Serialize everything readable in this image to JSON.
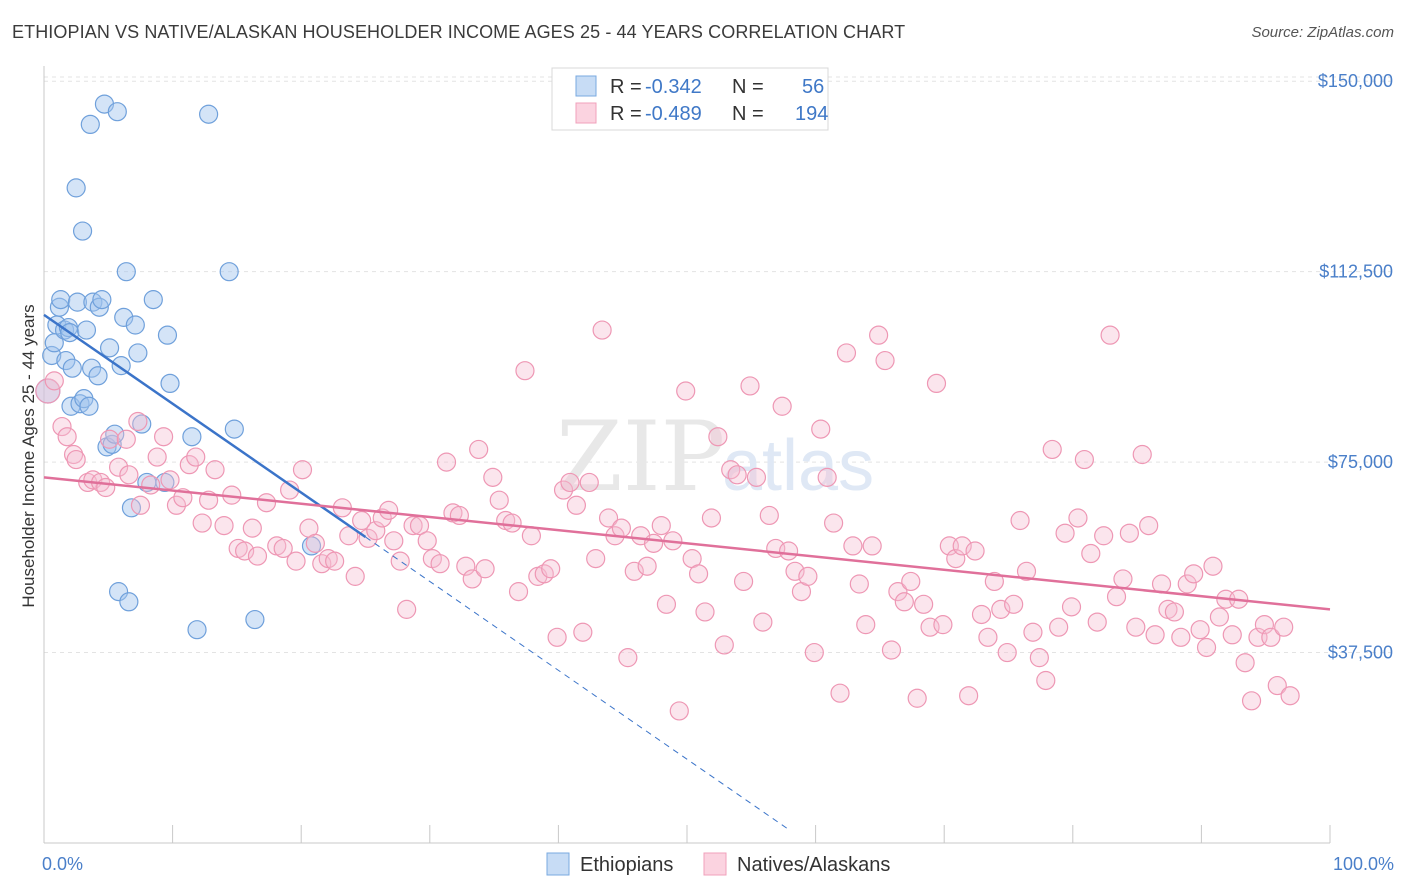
{
  "header": {
    "title": "ETHIOPIAN VS NATIVE/ALASKAN HOUSEHOLDER INCOME AGES 25 - 44 YEARS CORRELATION CHART",
    "source": "Source: ZipAtlas.com"
  },
  "watermark": {
    "zip": "ZIP",
    "atlas": "atlas"
  },
  "legend": {
    "rows": [
      {
        "r_label": "R =",
        "r_value": "-0.342",
        "n_label": "N =",
        "n_value": "56",
        "color": "#7aaae0"
      },
      {
        "r_label": "R =",
        "r_value": "-0.489",
        "n_label": "N =",
        "n_value": "194",
        "color": "#f0a0bb"
      }
    ]
  },
  "chart_data": {
    "type": "scatter",
    "title": "ETHIOPIAN VS NATIVE/ALASKAN HOUSEHOLDER INCOME AGES 25 - 44 YEARS CORRELATION CHART",
    "xlabel": "",
    "ylabel": "Householder Income Ages 25 - 44 years",
    "xlim": [
      0,
      100
    ],
    "ylim": [
      0,
      153000
    ],
    "x_tick_labels": [
      "0.0%",
      "100.0%"
    ],
    "y_ticks": [
      {
        "value": 37500,
        "label": "$37,500"
      },
      {
        "value": 75000,
        "label": "$75,000"
      },
      {
        "value": 112500,
        "label": "$112,500"
      },
      {
        "value": 150000,
        "label": "$150,000"
      }
    ],
    "grid": true,
    "legend_position": "top-center",
    "series": [
      {
        "name": "Ethiopians",
        "color": "#7aaae0",
        "line_color": "#3b74c9",
        "trend": {
          "x_start": 0,
          "y_start": 104000,
          "x_solid_end": 25,
          "x_end": 58,
          "y_at_zero": 104000,
          "slope_per_pct": -1750
        },
        "points": [
          [
            0.3,
            89000
          ],
          [
            0.6,
            96000
          ],
          [
            0.8,
            98500
          ],
          [
            1.0,
            102000
          ],
          [
            1.2,
            105500
          ],
          [
            1.3,
            107000
          ],
          [
            1.6,
            101000
          ],
          [
            1.7,
            95000
          ],
          [
            1.9,
            101500
          ],
          [
            2.0,
            100500
          ],
          [
            2.1,
            86000
          ],
          [
            2.2,
            93500
          ],
          [
            2.5,
            129000
          ],
          [
            2.6,
            106500
          ],
          [
            2.8,
            86500
          ],
          [
            3.0,
            120500
          ],
          [
            3.1,
            87500
          ],
          [
            3.3,
            101000
          ],
          [
            3.5,
            86000
          ],
          [
            3.6,
            141500
          ],
          [
            3.7,
            93500
          ],
          [
            3.8,
            106500
          ],
          [
            4.2,
            92000
          ],
          [
            4.3,
            105500
          ],
          [
            4.5,
            107000
          ],
          [
            4.7,
            145500
          ],
          [
            4.9,
            78000
          ],
          [
            5.1,
            97500
          ],
          [
            5.3,
            78500
          ],
          [
            5.5,
            80500
          ],
          [
            5.7,
            144000
          ],
          [
            5.8,
            49500
          ],
          [
            6.0,
            94000
          ],
          [
            6.2,
            103500
          ],
          [
            6.4,
            112500
          ],
          [
            6.6,
            47500
          ],
          [
            6.8,
            66000
          ],
          [
            7.1,
            102000
          ],
          [
            7.3,
            96500
          ],
          [
            7.6,
            82500
          ],
          [
            8.0,
            71000
          ],
          [
            8.5,
            107000
          ],
          [
            9.4,
            71000
          ],
          [
            9.6,
            100000
          ],
          [
            9.8,
            90500
          ],
          [
            11.5,
            80000
          ],
          [
            11.9,
            42000
          ],
          [
            12.8,
            143500
          ],
          [
            14.4,
            112500
          ],
          [
            14.8,
            81500
          ],
          [
            16.4,
            44000
          ],
          [
            20.8,
            58500
          ]
        ]
      },
      {
        "name": "Natives/Alaskans",
        "color": "#f0a0bb",
        "line_color": "#e0709a",
        "trend": {
          "x_start": 0,
          "y_start": 72000,
          "x_end": 100,
          "y_end": 46000
        },
        "points": [
          [
            0.3,
            89000
          ],
          [
            0.8,
            91000
          ],
          [
            1.4,
            82000
          ],
          [
            1.8,
            80000
          ],
          [
            2.3,
            76500
          ],
          [
            2.5,
            75500
          ],
          [
            3.4,
            71000
          ],
          [
            3.8,
            71500
          ],
          [
            4.4,
            71000
          ],
          [
            4.8,
            70000
          ],
          [
            5.1,
            79500
          ],
          [
            5.8,
            74000
          ],
          [
            6.4,
            79500
          ],
          [
            6.6,
            72500
          ],
          [
            7.3,
            83000
          ],
          [
            7.5,
            66500
          ],
          [
            8.3,
            70500
          ],
          [
            8.8,
            76000
          ],
          [
            9.3,
            80000
          ],
          [
            9.8,
            71500
          ],
          [
            10.3,
            66500
          ],
          [
            10.8,
            68000
          ],
          [
            11.3,
            74500
          ],
          [
            11.8,
            76000
          ],
          [
            12.3,
            63000
          ],
          [
            12.8,
            67500
          ],
          [
            13.3,
            73500
          ],
          [
            14.0,
            62500
          ],
          [
            14.6,
            68500
          ],
          [
            15.1,
            58000
          ],
          [
            15.6,
            57500
          ],
          [
            16.2,
            62000
          ],
          [
            16.6,
            56500
          ],
          [
            17.3,
            67000
          ],
          [
            18.1,
            58500
          ],
          [
            18.6,
            58000
          ],
          [
            19.1,
            69500
          ],
          [
            19.6,
            55500
          ],
          [
            20.1,
            73500
          ],
          [
            20.6,
            62000
          ],
          [
            21.1,
            59000
          ],
          [
            21.6,
            55000
          ],
          [
            22.1,
            56000
          ],
          [
            22.6,
            55500
          ],
          [
            23.2,
            66000
          ],
          [
            23.7,
            60500
          ],
          [
            24.2,
            52500
          ],
          [
            24.7,
            63500
          ],
          [
            25.2,
            60000
          ],
          [
            25.8,
            61500
          ],
          [
            26.3,
            64000
          ],
          [
            26.8,
            65500
          ],
          [
            27.2,
            59500
          ],
          [
            27.7,
            55500
          ],
          [
            28.2,
            46000
          ],
          [
            28.7,
            62500
          ],
          [
            29.2,
            62500
          ],
          [
            29.8,
            59500
          ],
          [
            30.2,
            56000
          ],
          [
            30.8,
            55000
          ],
          [
            31.3,
            75000
          ],
          [
            31.8,
            65000
          ],
          [
            32.3,
            64500
          ],
          [
            32.8,
            54500
          ],
          [
            33.3,
            52000
          ],
          [
            33.8,
            77500
          ],
          [
            34.3,
            54000
          ],
          [
            34.9,
            72000
          ],
          [
            35.4,
            67500
          ],
          [
            35.9,
            63500
          ],
          [
            36.4,
            63000
          ],
          [
            36.9,
            49500
          ],
          [
            37.4,
            93000
          ],
          [
            37.9,
            60500
          ],
          [
            38.4,
            52500
          ],
          [
            38.9,
            53000
          ],
          [
            39.4,
            54000
          ],
          [
            39.9,
            40500
          ],
          [
            40.4,
            69500
          ],
          [
            40.9,
            71000
          ],
          [
            41.4,
            66500
          ],
          [
            41.9,
            41500
          ],
          [
            42.4,
            71000
          ],
          [
            42.9,
            56000
          ],
          [
            43.4,
            101000
          ],
          [
            43.9,
            64000
          ],
          [
            44.4,
            60500
          ],
          [
            44.9,
            62000
          ],
          [
            45.4,
            36500
          ],
          [
            45.9,
            53500
          ],
          [
            46.4,
            60500
          ],
          [
            46.9,
            54500
          ],
          [
            47.4,
            59000
          ],
          [
            48.0,
            62500
          ],
          [
            48.4,
            47000
          ],
          [
            48.9,
            59500
          ],
          [
            49.4,
            26000
          ],
          [
            49.9,
            89000
          ],
          [
            50.4,
            56000
          ],
          [
            50.9,
            53000
          ],
          [
            51.4,
            45500
          ],
          [
            51.9,
            64000
          ],
          [
            52.4,
            80000
          ],
          [
            52.9,
            39000
          ],
          [
            53.4,
            73500
          ],
          [
            53.9,
            72500
          ],
          [
            54.4,
            51500
          ],
          [
            54.9,
            90000
          ],
          [
            55.4,
            72000
          ],
          [
            55.9,
            43500
          ],
          [
            56.4,
            64500
          ],
          [
            56.9,
            58000
          ],
          [
            57.4,
            86000
          ],
          [
            57.9,
            57500
          ],
          [
            58.4,
            53500
          ],
          [
            58.9,
            49500
          ],
          [
            59.4,
            52500
          ],
          [
            59.9,
            37500
          ],
          [
            60.4,
            81500
          ],
          [
            60.9,
            72000
          ],
          [
            61.4,
            63000
          ],
          [
            61.9,
            29500
          ],
          [
            62.4,
            96500
          ],
          [
            62.9,
            58500
          ],
          [
            63.4,
            51000
          ],
          [
            63.9,
            43000
          ],
          [
            64.4,
            58500
          ],
          [
            64.9,
            100000
          ],
          [
            65.4,
            95000
          ],
          [
            65.9,
            38000
          ],
          [
            66.4,
            49500
          ],
          [
            66.9,
            47500
          ],
          [
            67.4,
            51500
          ],
          [
            67.9,
            28500
          ],
          [
            68.4,
            47000
          ],
          [
            68.9,
            42500
          ],
          [
            69.4,
            90500
          ],
          [
            69.9,
            43000
          ],
          [
            70.4,
            58500
          ],
          [
            70.9,
            56000
          ],
          [
            71.4,
            58500
          ],
          [
            71.9,
            29000
          ],
          [
            72.4,
            57500
          ],
          [
            72.9,
            45000
          ],
          [
            73.4,
            40500
          ],
          [
            73.9,
            51500
          ],
          [
            74.4,
            46000
          ],
          [
            74.9,
            37500
          ],
          [
            75.4,
            47000
          ],
          [
            75.9,
            63500
          ],
          [
            76.4,
            53500
          ],
          [
            76.9,
            41500
          ],
          [
            77.4,
            36500
          ],
          [
            77.9,
            32000
          ],
          [
            78.4,
            77500
          ],
          [
            78.9,
            42500
          ],
          [
            79.4,
            61000
          ],
          [
            79.9,
            46500
          ],
          [
            80.4,
            64000
          ],
          [
            80.9,
            75500
          ],
          [
            81.4,
            57000
          ],
          [
            81.9,
            43500
          ],
          [
            82.4,
            60500
          ],
          [
            82.9,
            100000
          ],
          [
            83.4,
            48500
          ],
          [
            83.9,
            52000
          ],
          [
            84.4,
            61000
          ],
          [
            84.9,
            42500
          ],
          [
            85.4,
            76500
          ],
          [
            85.9,
            62500
          ],
          [
            86.4,
            41000
          ],
          [
            86.9,
            51000
          ],
          [
            87.4,
            46000
          ],
          [
            87.9,
            45500
          ],
          [
            88.4,
            40500
          ],
          [
            88.9,
            51000
          ],
          [
            89.4,
            53000
          ],
          [
            89.9,
            42000
          ],
          [
            90.4,
            38500
          ],
          [
            90.9,
            54500
          ],
          [
            91.4,
            44500
          ],
          [
            91.9,
            48000
          ],
          [
            92.4,
            41000
          ],
          [
            92.9,
            48000
          ],
          [
            93.4,
            35500
          ],
          [
            93.9,
            28000
          ],
          [
            94.4,
            40500
          ],
          [
            94.9,
            43000
          ],
          [
            95.4,
            40500
          ],
          [
            95.9,
            31000
          ],
          [
            96.4,
            42500
          ],
          [
            96.9,
            29000
          ]
        ]
      }
    ]
  },
  "bottom_legend": [
    {
      "label": "Ethiopians",
      "color": "#7aaae0"
    },
    {
      "label": "Natives/Alaskans",
      "color": "#f0a0bb"
    }
  ]
}
